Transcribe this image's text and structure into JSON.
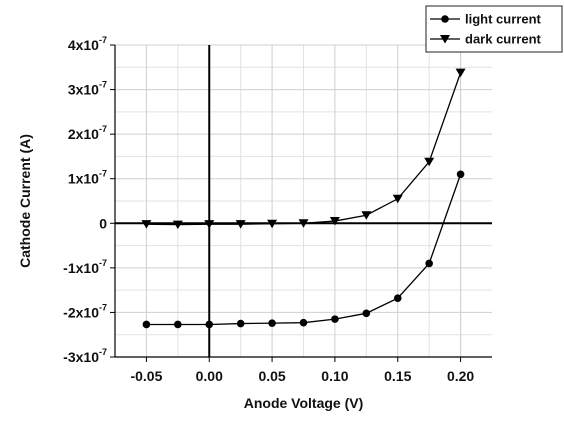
{
  "chart_data": {
    "type": "line",
    "xlabel": "Anode Voltage (V)",
    "ylabel": "Cathode Current (A)",
    "xlim": [
      -0.075,
      0.225
    ],
    "ylim": [
      -3e-07,
      4e-07
    ],
    "x_ticks": [
      -0.05,
      0.0,
      0.05,
      0.1,
      0.15,
      0.2
    ],
    "x_tick_labels": [
      "-0.05",
      "0.00",
      "0.05",
      "0.10",
      "0.15",
      "0.20"
    ],
    "y_ticks": [
      4e-07,
      3e-07,
      2e-07,
      1e-07,
      0,
      -1e-07,
      -2e-07,
      -3e-07
    ],
    "y_tick_labels": [
      {
        "mant": "4x10",
        "exp": "-7"
      },
      {
        "mant": "3x10",
        "exp": "-7"
      },
      {
        "mant": "2x10",
        "exp": "-7"
      },
      {
        "mant": "1x10",
        "exp": "-7"
      },
      {
        "mant": "0",
        "exp": ""
      },
      {
        "mant": "-1x10",
        "exp": "-7"
      },
      {
        "mant": "-2x10",
        "exp": "-7"
      },
      {
        "mant": "-3x10",
        "exp": "-7"
      }
    ],
    "grid": true,
    "legend_position": "top-right",
    "series": [
      {
        "name": "light current",
        "marker": "circle",
        "color": "#000000",
        "x": [
          -0.05,
          -0.025,
          0.0,
          0.025,
          0.05,
          0.075,
          0.1,
          0.125,
          0.15,
          0.175,
          0.2
        ],
        "y": [
          -2.27e-07,
          -2.27e-07,
          -2.27e-07,
          -2.25e-07,
          -2.24e-07,
          -2.23e-07,
          -2.15e-07,
          -2.02e-07,
          -1.68e-07,
          -9e-08,
          1.1e-07
        ]
      },
      {
        "name": "dark current",
        "marker": "triangle-down",
        "color": "#000000",
        "x": [
          -0.05,
          -0.025,
          0.0,
          0.025,
          0.05,
          0.075,
          0.1,
          0.125,
          0.15,
          0.175,
          0.2
        ],
        "y": [
          -2e-09,
          -3e-09,
          -2e-09,
          -2e-09,
          -1e-09,
          0.0,
          5e-09,
          1.8e-08,
          5.5e-08,
          1.38e-07,
          3.38e-07
        ]
      }
    ]
  }
}
